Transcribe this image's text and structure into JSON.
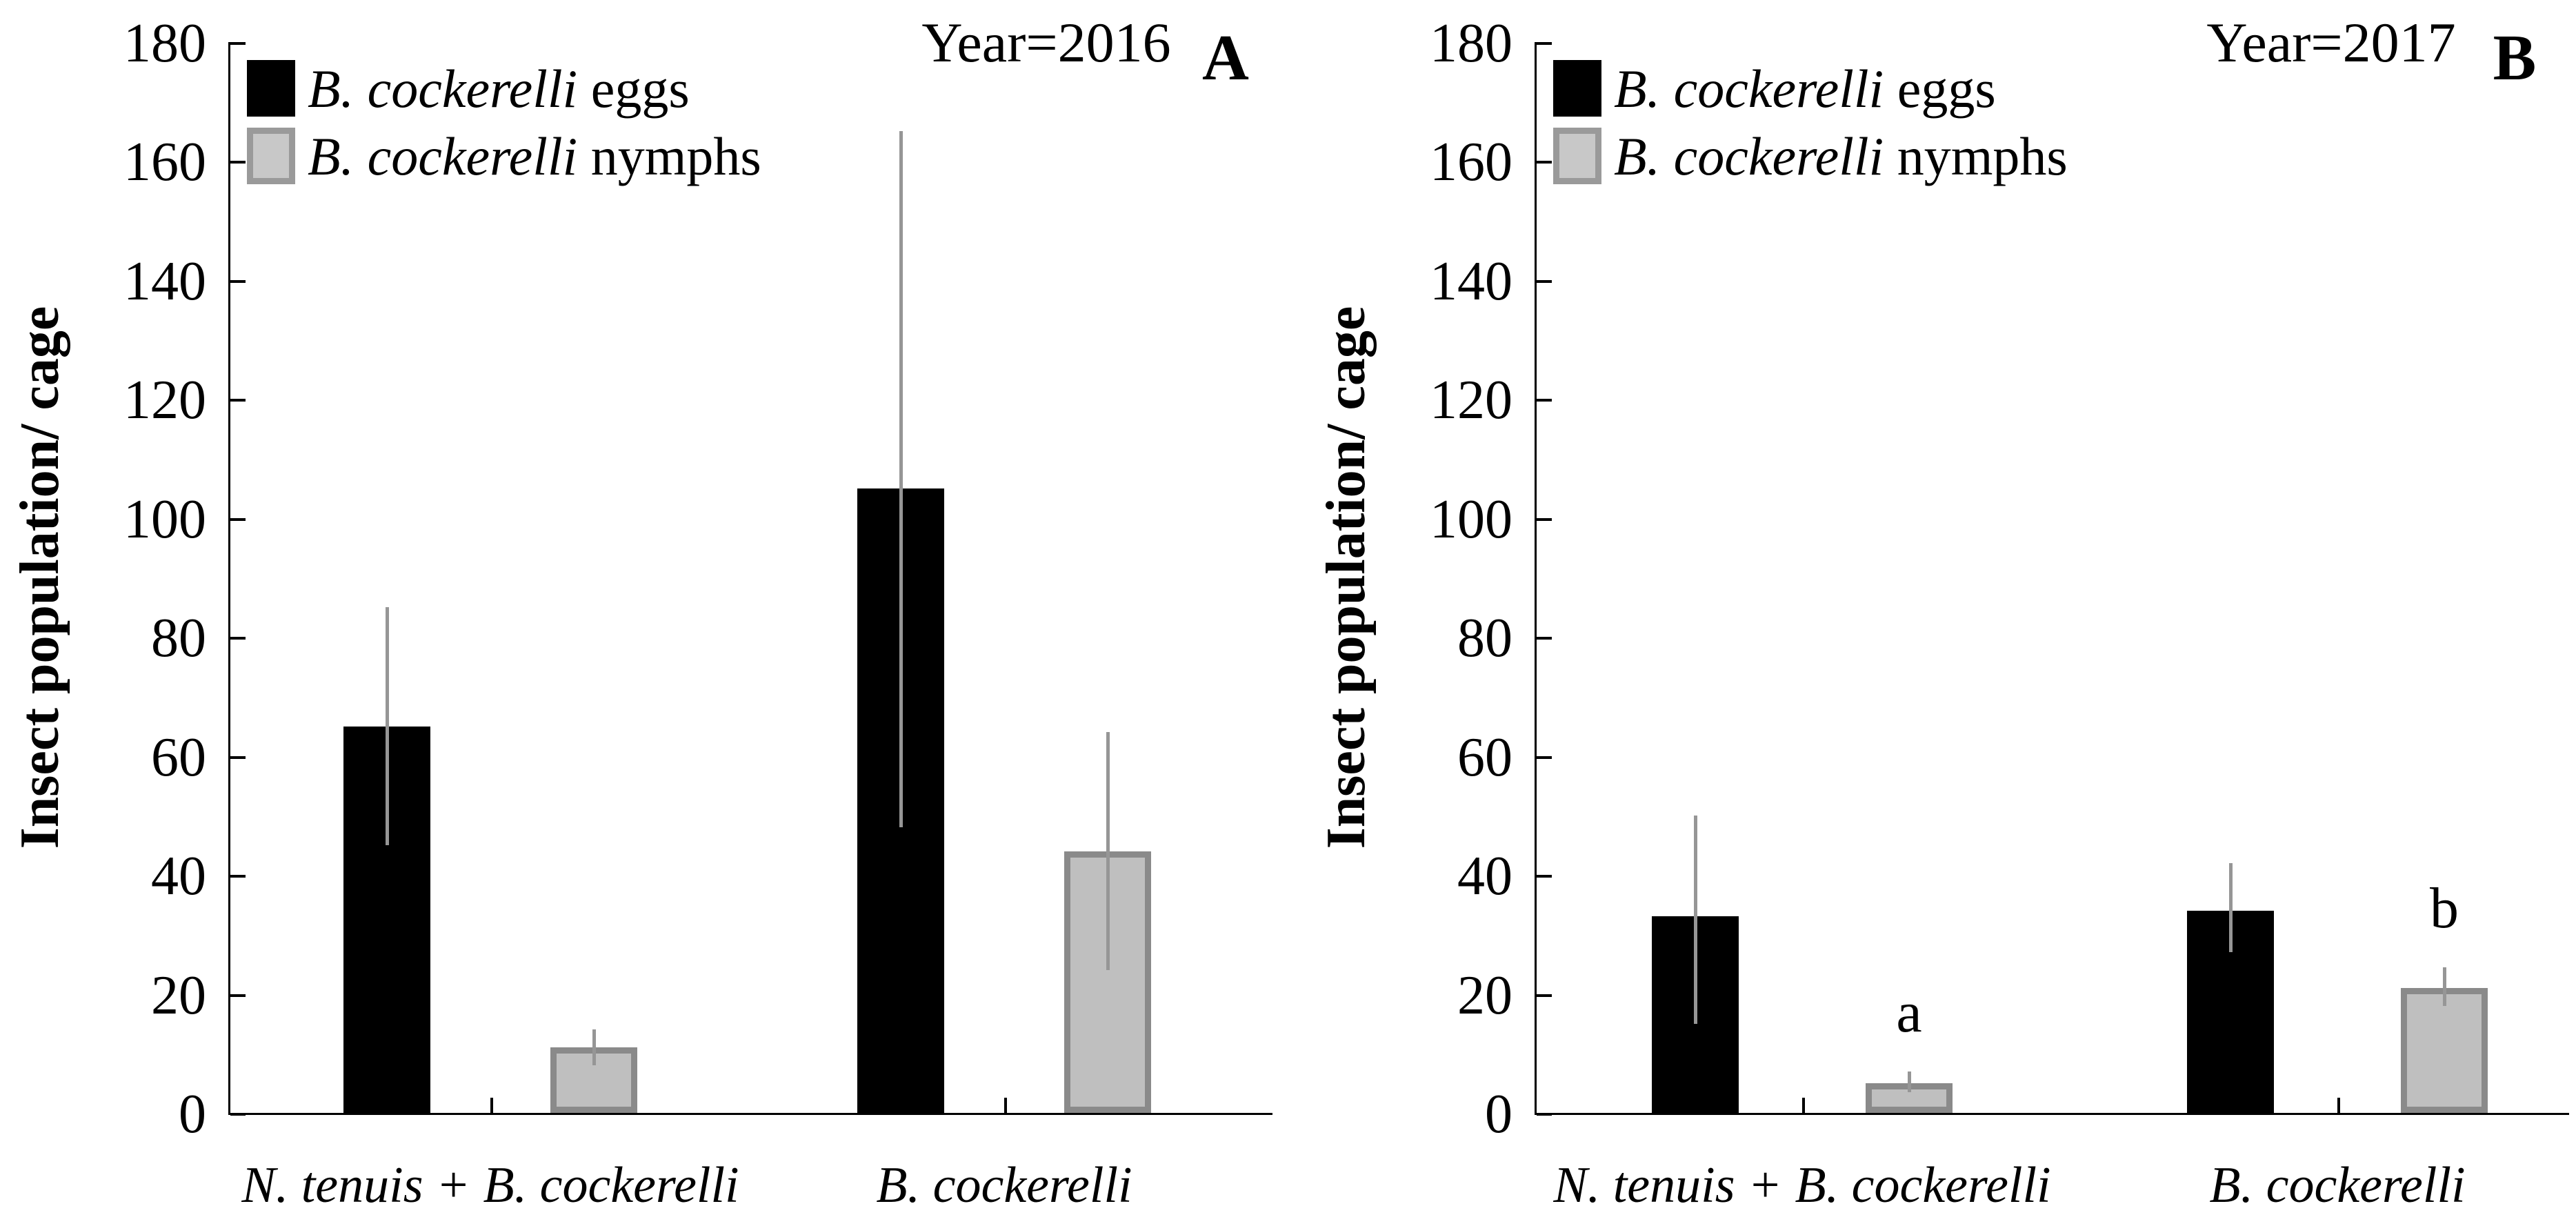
{
  "figure": {
    "legend": [
      {
        "swatch": "black",
        "swatch_color": "#000000",
        "species": "B. cockerelli",
        "stage": " eggs"
      },
      {
        "swatch": "gray",
        "swatch_color": "#bfbfbf",
        "species": "B. cockerelli",
        "stage": " nymphs"
      }
    ],
    "colors": {
      "eggs_bar": "#000000",
      "nymphs_bar_fill": "#bfbfbf",
      "nymphs_bar_border": "#8a8a8a",
      "error_bar": "#969696",
      "axis": "#000000"
    }
  },
  "chart_data": [
    {
      "type": "bar",
      "panel_label": "A",
      "annotation": "Year=2016",
      "ylabel": "Insect population/ cage",
      "ylim": [
        0,
        180
      ],
      "ytick_step": 20,
      "yticks": [
        0,
        20,
        40,
        60,
        80,
        100,
        120,
        140,
        160,
        180
      ],
      "grid": false,
      "legend_position": "top-left",
      "categories": [
        "N. tenuis + B. cockerelli",
        "B. cockerelli"
      ],
      "series": [
        {
          "name": "B. cockerelli eggs",
          "color": "#000000",
          "values": [
            65,
            105
          ],
          "error_low": [
            45,
            48
          ],
          "error_high": [
            85,
            165
          ],
          "letters": [
            "",
            ""
          ]
        },
        {
          "name": "B. cockerelli nymphs",
          "color": "#bfbfbf",
          "values": [
            11,
            44
          ],
          "error_low": [
            8,
            24
          ],
          "error_high": [
            14,
            64
          ],
          "letters": [
            "",
            ""
          ]
        }
      ]
    },
    {
      "type": "bar",
      "panel_label": "B",
      "annotation": "Year=2017",
      "ylabel": "Insect population/ cage",
      "ylim": [
        0,
        180
      ],
      "ytick_step": 20,
      "yticks": [
        0,
        20,
        40,
        60,
        80,
        100,
        120,
        140,
        160,
        180
      ],
      "grid": false,
      "legend_position": "top-left",
      "categories": [
        "N. tenuis + B. cockerelli",
        "B. cockerelli"
      ],
      "series": [
        {
          "name": "B. cockerelli eggs",
          "color": "#000000",
          "values": [
            33,
            34
          ],
          "error_low": [
            15,
            27
          ],
          "error_high": [
            50,
            42
          ],
          "letters": [
            "",
            ""
          ]
        },
        {
          "name": "B. cockerelli nymphs",
          "color": "#bfbfbf",
          "values": [
            5,
            21
          ],
          "error_low": [
            3.5,
            18
          ],
          "error_high": [
            7,
            24.5
          ],
          "letters": [
            "a",
            "b"
          ]
        }
      ]
    }
  ]
}
